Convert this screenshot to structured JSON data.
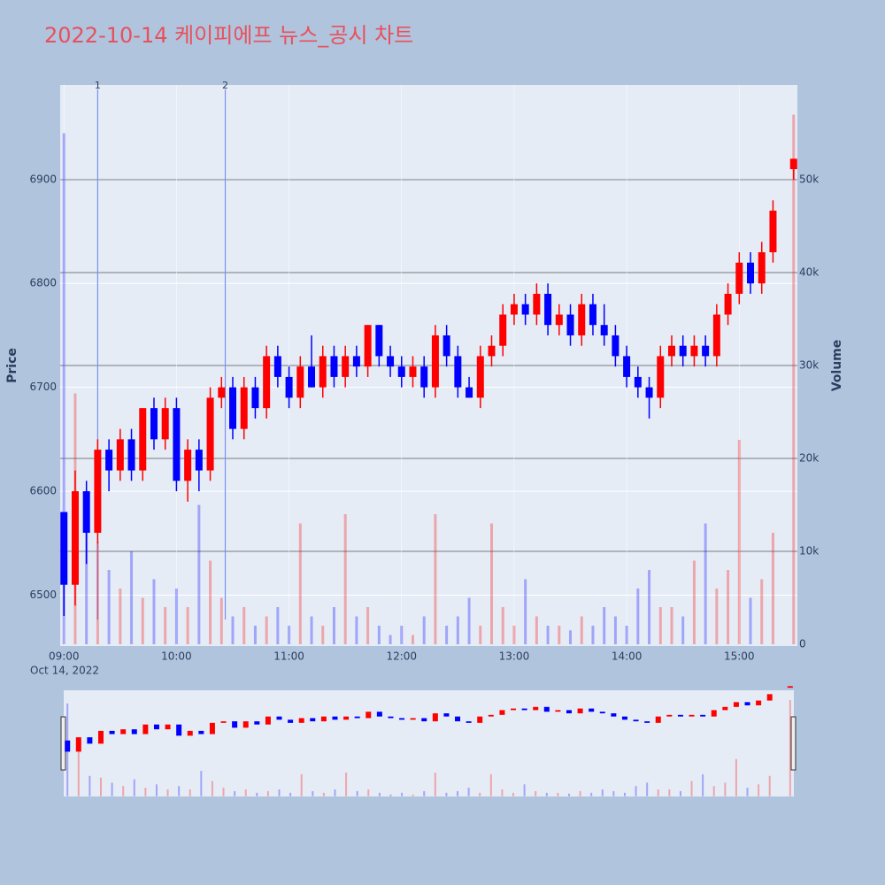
{
  "chart_data": {
    "type": "candlestick",
    "title": "2022-10-14 케이피에프 뉴스_공시 차트",
    "y_label": "Price",
    "y2_label": "Volume",
    "x_sublabel": "Oct 14, 2022",
    "up_color": "#ff0000",
    "down_color": "#0000ff",
    "x": [
      "09:00",
      "09:06",
      "09:12",
      "09:18",
      "09:24",
      "09:30",
      "09:36",
      "09:42",
      "09:48",
      "09:54",
      "10:00",
      "10:06",
      "10:12",
      "10:18",
      "10:24",
      "10:30",
      "10:36",
      "10:42",
      "10:48",
      "10:54",
      "11:00",
      "11:06",
      "11:12",
      "11:18",
      "11:24",
      "11:30",
      "11:36",
      "11:42",
      "11:48",
      "11:54",
      "12:00",
      "12:06",
      "12:12",
      "12:18",
      "12:24",
      "12:30",
      "12:36",
      "12:42",
      "12:48",
      "12:54",
      "13:00",
      "13:06",
      "13:12",
      "13:18",
      "13:24",
      "13:30",
      "13:36",
      "13:42",
      "13:48",
      "13:54",
      "14:00",
      "14:06",
      "14:12",
      "14:18",
      "14:24",
      "14:30",
      "14:36",
      "14:42",
      "14:48",
      "14:54",
      "15:00",
      "15:06",
      "15:12",
      "15:18",
      "15:29"
    ],
    "open": [
      6580,
      6510,
      6600,
      6560,
      6640,
      6620,
      6650,
      6620,
      6680,
      6650,
      6680,
      6610,
      6640,
      6620,
      6690,
      6700,
      6660,
      6700,
      6680,
      6730,
      6710,
      6690,
      6720,
      6700,
      6730,
      6710,
      6730,
      6720,
      6760,
      6730,
      6720,
      6710,
      6720,
      6700,
      6750,
      6730,
      6700,
      6690,
      6730,
      6740,
      6770,
      6780,
      6770,
      6790,
      6760,
      6770,
      6750,
      6780,
      6760,
      6750,
      6730,
      6710,
      6700,
      6690,
      6730,
      6740,
      6730,
      6740,
      6730,
      6770,
      6790,
      6820,
      6800,
      6830,
      6910
    ],
    "high": [
      6580,
      6620,
      6610,
      6650,
      6650,
      6660,
      6660,
      6680,
      6690,
      6690,
      6690,
      6650,
      6650,
      6700,
      6710,
      6710,
      6710,
      6710,
      6740,
      6740,
      6720,
      6730,
      6750,
      6740,
      6740,
      6740,
      6740,
      6760,
      6760,
      6740,
      6730,
      6730,
      6730,
      6760,
      6760,
      6740,
      6710,
      6740,
      6750,
      6780,
      6790,
      6790,
      6800,
      6800,
      6780,
      6780,
      6790,
      6790,
      6780,
      6760,
      6740,
      6720,
      6710,
      6740,
      6750,
      6750,
      6750,
      6750,
      6780,
      6800,
      6830,
      6830,
      6840,
      6880,
      6920
    ],
    "low": [
      6480,
      6490,
      6530,
      6550,
      6600,
      6610,
      6610,
      6610,
      6640,
      6640,
      6600,
      6590,
      6600,
      6610,
      6680,
      6650,
      6650,
      6670,
      6670,
      6700,
      6680,
      6680,
      6700,
      6690,
      6700,
      6700,
      6710,
      6710,
      6720,
      6710,
      6700,
      6700,
      6690,
      6690,
      6720,
      6690,
      6690,
      6680,
      6720,
      6730,
      6760,
      6760,
      6760,
      6750,
      6750,
      6740,
      6740,
      6750,
      6740,
      6720,
      6700,
      6690,
      6670,
      6680,
      6720,
      6720,
      6720,
      6720,
      6720,
      6760,
      6780,
      6790,
      6790,
      6820,
      6900
    ],
    "close": [
      6510,
      6600,
      6560,
      6640,
      6620,
      6650,
      6620,
      6680,
      6650,
      6680,
      6610,
      6640,
      6620,
      6690,
      6700,
      6660,
      6700,
      6680,
      6730,
      6710,
      6690,
      6720,
      6700,
      6730,
      6710,
      6730,
      6720,
      6760,
      6730,
      6720,
      6710,
      6720,
      6700,
      6750,
      6730,
      6700,
      6690,
      6730,
      6740,
      6770,
      6780,
      6770,
      6790,
      6760,
      6770,
      6750,
      6780,
      6760,
      6750,
      6730,
      6710,
      6700,
      6690,
      6730,
      6740,
      6730,
      6740,
      6730,
      6770,
      6790,
      6820,
      6800,
      6830,
      6870,
      6920
    ],
    "volume": [
      55000,
      27000,
      12000,
      11000,
      8000,
      6000,
      10000,
      5000,
      7000,
      4000,
      6000,
      4000,
      15000,
      9000,
      5000,
      3000,
      4000,
      2000,
      3000,
      4000,
      2000,
      13000,
      3000,
      2000,
      4000,
      14000,
      3000,
      4000,
      2000,
      1000,
      2000,
      1000,
      3000,
      14000,
      2000,
      3000,
      5000,
      2000,
      13000,
      4000,
      2000,
      7000,
      3000,
      2000,
      2000,
      1500,
      3000,
      2000,
      4000,
      3000,
      2000,
      6000,
      8000,
      4000,
      4000,
      3000,
      9000,
      13000,
      6000,
      8000,
      22000,
      5000,
      7000,
      12000,
      57000
    ],
    "xlim": [
      "08:58",
      "15:31"
    ],
    "xticks": [
      "09:00",
      "10:00",
      "11:00",
      "12:00",
      "13:00",
      "14:00",
      "15:00"
    ],
    "ylim": [
      6451,
      6991
    ],
    "yticks": [
      6500,
      6600,
      6700,
      6800,
      6900
    ],
    "y2lim": [
      -190,
      60190
    ],
    "y2ticks": [
      0,
      {
        "value": 10000,
        "label": "10k"
      },
      {
        "value": 20000,
        "label": "20k"
      },
      {
        "value": 30000,
        "label": "30k"
      },
      {
        "value": 40000,
        "label": "40k"
      },
      {
        "value": 50000,
        "label": "50k"
      }
    ],
    "annotations": [
      {
        "x": "09:18",
        "label": "1"
      },
      {
        "x": "10:26",
        "label": "2"
      }
    ]
  }
}
